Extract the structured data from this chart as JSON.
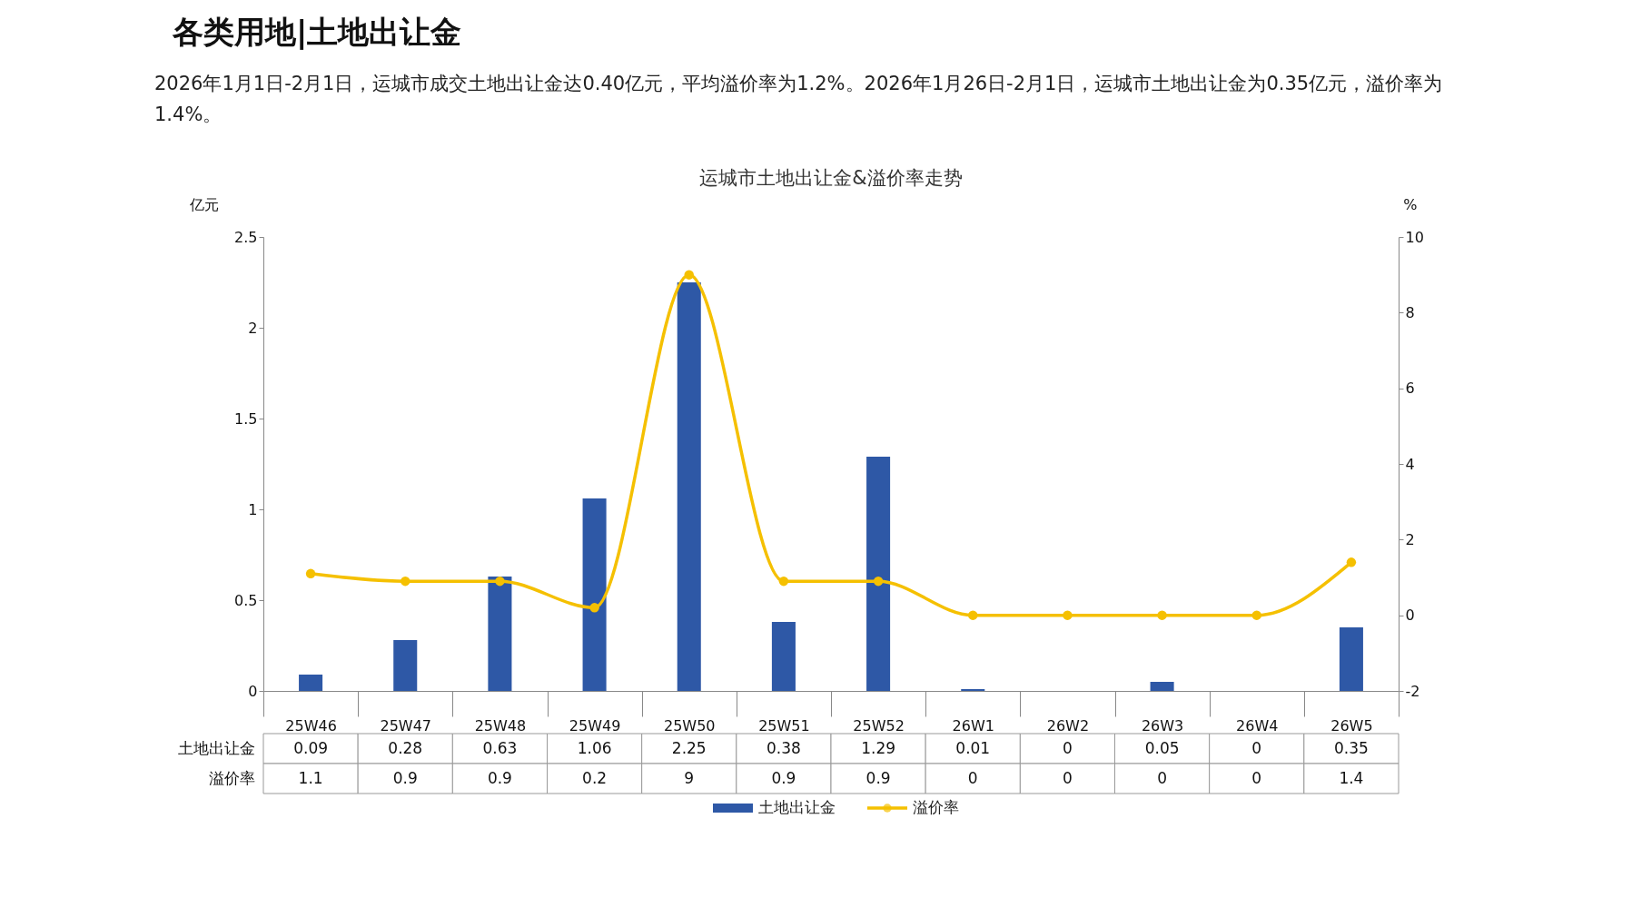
{
  "chart_data": {
    "type": "bar",
    "title": "运城市土地出让金&溢价率走势",
    "annotations": [
      "各类用地|土地出让金",
      "2026年1月1日-2月1日，运城市成交土地出让金达0.40亿元，平均溢价率为1.2%。2026年1月26日-2月1日，运城市土地出让金为0.35亿元，溢价率为1.4%。"
    ],
    "ylabel": "亿元",
    "y2label": "%",
    "categories": [
      "25W46",
      "25W47",
      "25W48",
      "25W49",
      "25W50",
      "25W51",
      "25W52",
      "26W1",
      "26W2",
      "26W3",
      "26W4",
      "26W5"
    ],
    "series": [
      {
        "name": "土地出让金",
        "type": "bar",
        "color": "#2e58a6",
        "values": [
          0.09,
          0.28,
          0.63,
          1.06,
          2.25,
          0.38,
          1.29,
          0.01,
          0,
          0.05,
          0,
          0.35
        ]
      },
      {
        "name": "溢价率",
        "type": "line",
        "axis": "y2",
        "color": "#f5c000",
        "values": [
          1.1,
          0.9,
          0.9,
          0.2,
          9,
          0.9,
          0.9,
          0,
          0,
          0,
          0,
          1.4
        ]
      }
    ],
    "ylim": [
      0,
      2.5
    ],
    "yticks": [
      0,
      0.5,
      1,
      1.5,
      2,
      2.5
    ],
    "y2lim": [
      -2,
      10
    ],
    "y2ticks": [
      -2,
      0,
      2,
      4,
      6,
      8,
      10
    ],
    "marker": "circle",
    "legend": "bottom",
    "data_labels": true,
    "grid": false
  }
}
